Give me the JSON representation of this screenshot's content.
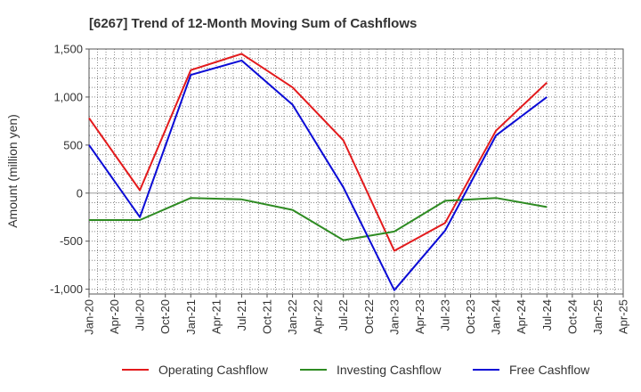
{
  "chart_data": {
    "type": "line",
    "title": "[6267]  Trend of 12-Month Moving Sum of Cashflows",
    "xlabel": "",
    "ylabel": "Amount (million yen)",
    "categories": [
      "Jan-20",
      "Apr-20",
      "Jul-20",
      "Oct-20",
      "Jan-21",
      "Apr-21",
      "Jul-21",
      "Oct-21",
      "Jan-22",
      "Apr-22",
      "Jul-22",
      "Oct-22",
      "Jan-23",
      "Apr-23",
      "Jul-23",
      "Oct-23",
      "Jan-24",
      "Apr-24",
      "Jul-24",
      "Oct-24",
      "Jan-25",
      "Apr-25"
    ],
    "ylim": [
      -1050,
      1500
    ],
    "yticks": [
      -1000,
      -500,
      0,
      500,
      1000,
      1500
    ],
    "ytick_labels": [
      "-1,000",
      "-500",
      "0",
      "500",
      "1,000",
      "1,500"
    ],
    "grid": true,
    "legend_position": "bottom",
    "series": [
      {
        "name": "Operating Cashflow",
        "color": "#e31a1c",
        "x": [
          "Jan-20",
          "Jul-20",
          "Jan-21",
          "Jul-21",
          "Jan-22",
          "Jul-22",
          "Jan-23",
          "Jul-23",
          "Jan-24",
          "Jul-24"
        ],
        "values": [
          780,
          30,
          1280,
          1450,
          1100,
          550,
          -600,
          -310,
          650,
          1150
        ]
      },
      {
        "name": "Investing Cashflow",
        "color": "#2e8b22",
        "x": [
          "Jan-20",
          "Jul-20",
          "Jan-21",
          "Jul-21",
          "Jan-22",
          "Jul-22",
          "Jan-23",
          "Jul-23",
          "Jan-24",
          "Jul-24"
        ],
        "values": [
          -280,
          -280,
          -50,
          -65,
          -175,
          -490,
          -400,
          -80,
          -50,
          -145
        ]
      },
      {
        "name": "Free Cashflow",
        "color": "#0b0bd6",
        "x": [
          "Jan-20",
          "Jul-20",
          "Jan-21",
          "Jul-21",
          "Jan-22",
          "Jul-22",
          "Jan-23",
          "Jul-23",
          "Jan-24",
          "Jul-24"
        ],
        "values": [
          500,
          -250,
          1230,
          1380,
          920,
          60,
          -1010,
          -390,
          600,
          1000
        ]
      }
    ]
  }
}
